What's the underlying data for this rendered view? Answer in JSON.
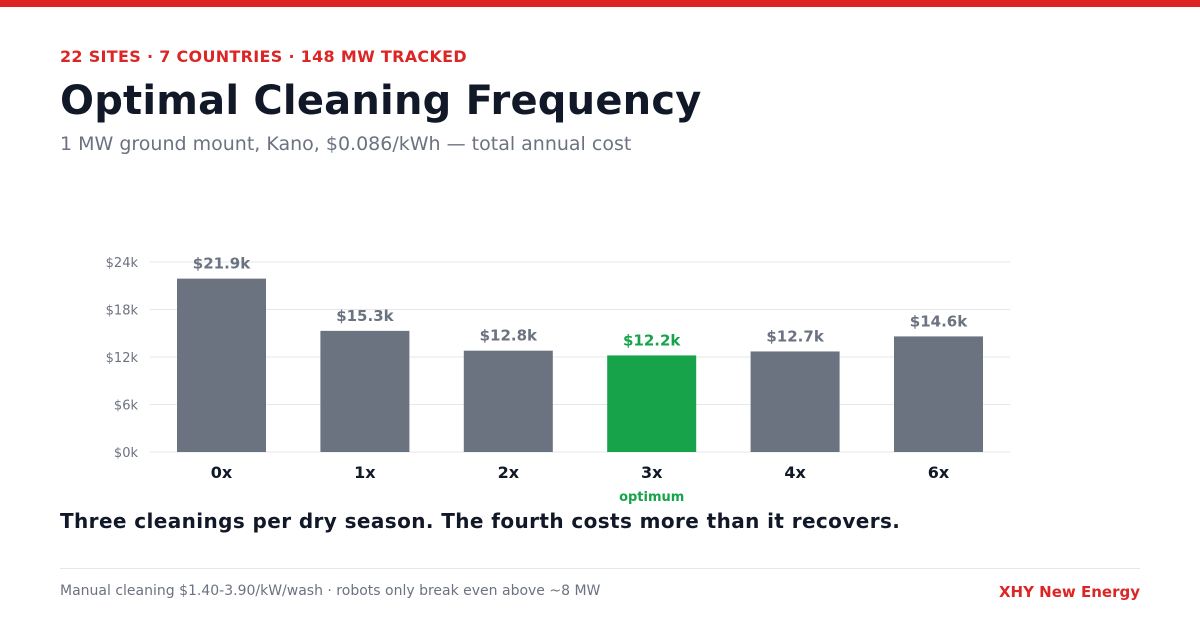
{
  "header": {
    "kicker": "22 SITES · 7 COUNTRIES · 148 MW TRACKED",
    "title": "Optimal Cleaning Frequency",
    "subtitle": "1 MW ground mount, Kano, $0.086/kWh — total annual cost"
  },
  "chart_data": {
    "type": "bar",
    "categories": [
      "0x",
      "1x",
      "2x",
      "3x",
      "4x",
      "6x"
    ],
    "values": [
      21.9,
      15.3,
      12.8,
      12.2,
      12.7,
      14.6
    ],
    "value_labels": [
      "$21.9k",
      "$15.3k",
      "$12.8k",
      "$12.2k",
      "$12.7k",
      "$14.6k"
    ],
    "ylim": [
      0,
      24
    ],
    "yticks": [
      0,
      6,
      12,
      18,
      24
    ],
    "ytick_labels": [
      "$0k",
      "$6k",
      "$12k",
      "$18k",
      "$24k"
    ],
    "grid": true,
    "highlight_index": 3,
    "highlight_annotation": "optimum",
    "colors": {
      "bar": "#6b7280",
      "highlight": "#16a34a",
      "grid": "#e5e7eb"
    }
  },
  "takeaway": "Three cleanings per dry season. The fourth costs more than it recovers.",
  "footer": {
    "note": "Manual cleaning $1.40-3.90/kW/wash · robots only break even above ~8 MW",
    "brand": "XHY New Energy"
  },
  "colors": {
    "accent": "#dc2626",
    "text": "#111827",
    "muted": "#6b7280"
  }
}
